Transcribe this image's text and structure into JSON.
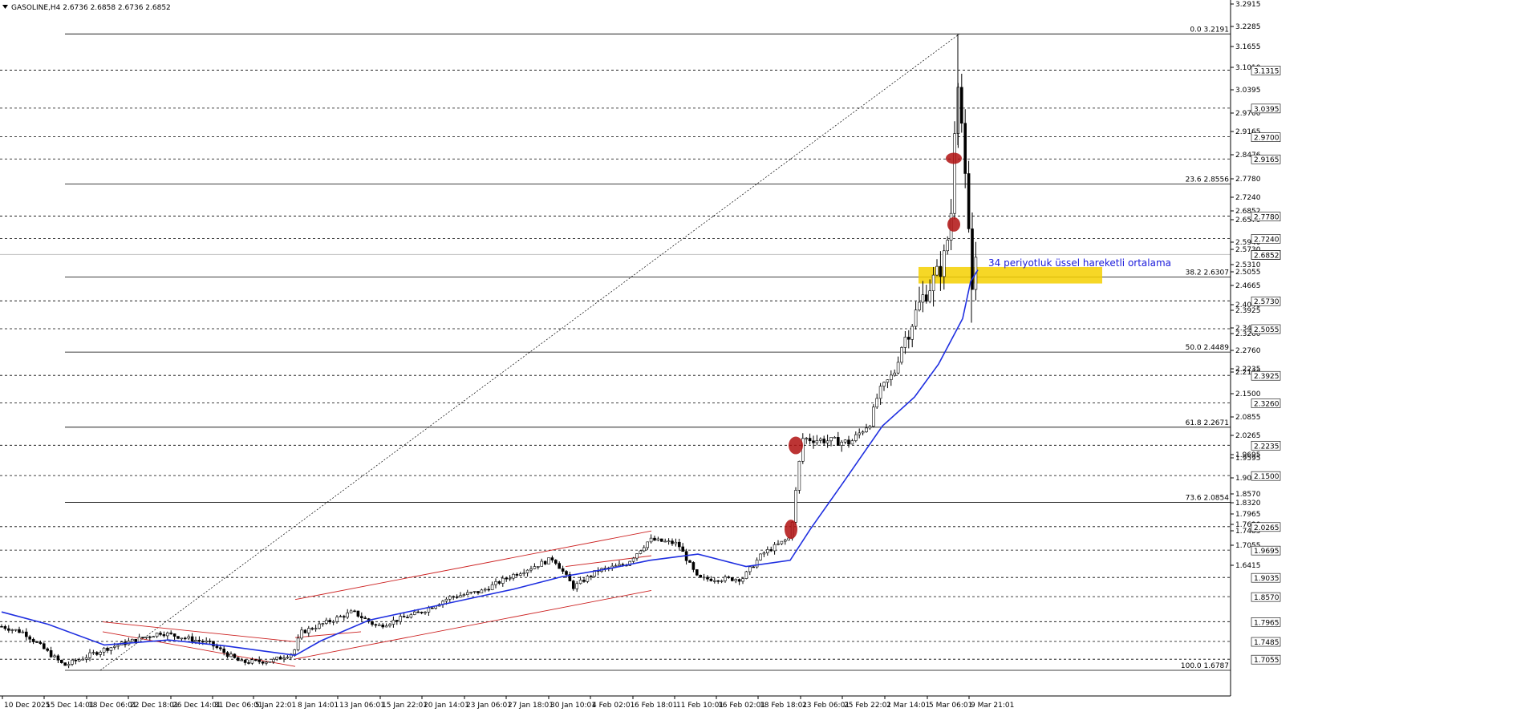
{
  "header": {
    "symbol_line": "GASOLINE,H4  2.6736 2.6858 2.6736 2.6852"
  },
  "chart_data": {
    "type": "candlestick",
    "symbol": "GASOLINE",
    "timeframe": "H4",
    "ohlc": {
      "open": 2.6736,
      "high": 2.6858,
      "low": 2.6736,
      "close": 2.6852
    },
    "current_price": 2.6852,
    "y_range": [
      1.6457,
      3.2915
    ],
    "y_ticks": [
      "3.2915",
      "3.2285",
      "3.1655",
      "3.1010",
      "3.0395",
      "2.9700",
      "2.9165",
      "2.8476",
      "2.7780",
      "2.7240",
      "2.6852",
      "2.6570",
      "2.5940",
      "2.5730",
      "2.5310",
      "2.5055",
      "2.4665",
      "2.4040",
      "2.3925",
      "2.3405",
      "2.3260",
      "2.2760",
      "2.2235",
      "2.2130",
      "2.1500",
      "2.0855",
      "2.0265",
      "1.9695",
      "1.9595",
      "1.9035",
      "1.8570",
      "1.8320",
      "1.7965",
      "1.7690",
      "1.7485",
      "1.7055",
      "1.6415"
    ],
    "horizontal_levels": [
      3.1315,
      3.0395,
      2.97,
      2.9165,
      2.778,
      2.724,
      2.573,
      2.5055,
      2.3925,
      2.326,
      2.2235,
      2.15,
      2.0265,
      1.9695,
      1.9035,
      1.857,
      1.7965,
      1.7485,
      1.7055
    ],
    "level_tags": [
      "3.1315",
      "3.0395",
      "2.9700",
      "2.9165",
      "2.7780",
      "2.7240",
      "2.5730",
      "2.5055",
      "2.3925",
      "2.3260",
      "2.2235",
      "2.1500",
      "2.0265",
      "1.9695",
      "1.9035",
      "1.8570",
      "1.7965",
      "1.7485",
      "1.7055"
    ],
    "fibonacci": [
      {
        "label": "0.0 3.2191",
        "price": 3.2191
      },
      {
        "label": "23.6 2.8556",
        "price": 2.8556
      },
      {
        "label": "38.2 2.6307",
        "price": 2.6307
      },
      {
        "label": "50.0 2.4489",
        "price": 2.4489
      },
      {
        "label": "61.8 2.2671",
        "price": 2.2671
      },
      {
        "label": "73.6 2.0854",
        "price": 2.0854
      },
      {
        "label": "100.0 1.6787",
        "price": 1.6787
      }
    ],
    "x_labels": [
      "10 Dec 2025",
      "15 Dec 14:01",
      "18 Dec 06:01",
      "22 Dec 18:01",
      "26 Dec 14:01",
      "31 Dec 06:01",
      "5 Jan 22:01",
      "8 Jan 14:01",
      "13 Jan 06:01",
      "15 Jan 22:01",
      "20 Jan 14:01",
      "23 Jan 06:01",
      "27 Jan 18:01",
      "30 Jan 10:01",
      "4 Feb 02:01",
      "6 Feb 18:01",
      "11 Feb 10:01",
      "16 Feb 02:01",
      "18 Feb 18:01",
      "23 Feb 06:01",
      "25 Feb 22:01",
      "2 Mar 14:01",
      "5 Mar 06:01",
      "9 Mar 21:01"
    ],
    "annotation": "34 periyotluk üssel hareketli ortalama",
    "ema_period": 34,
    "colors": {
      "ema": "#1f2fe0",
      "channel": "#cc2222",
      "zone": "#f5d000",
      "marker": "#b01010",
      "candle": "#000000"
    }
  }
}
